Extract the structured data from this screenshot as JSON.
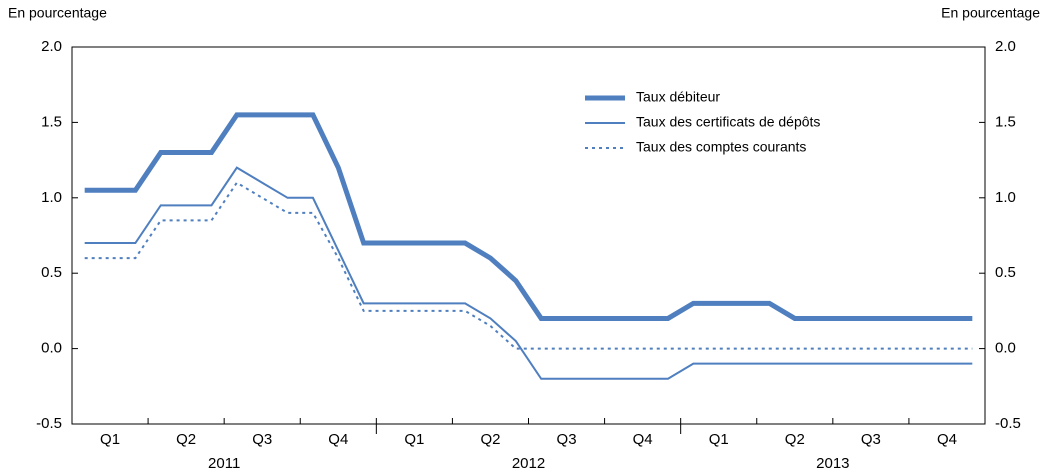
{
  "chart_data": {
    "type": "line",
    "y_label": "En pourcentage",
    "y2_label": "En pourcentage",
    "quarters": [
      "Q1",
      "Q2",
      "Q3",
      "Q4",
      "Q1",
      "Q2",
      "Q3",
      "Q4",
      "Q1",
      "Q2",
      "Q3",
      "Q4"
    ],
    "years": [
      "2011",
      "2012",
      "2013"
    ],
    "series": [
      {
        "name": "Taux débiteur",
        "color": "#4f7fbf",
        "style": "thick",
        "values": [
          1.05,
          1.05,
          1.05,
          1.3,
          1.3,
          1.3,
          1.55,
          1.55,
          1.55,
          1.55,
          1.2,
          0.7,
          0.7,
          0.7,
          0.7,
          0.7,
          0.6,
          0.45,
          0.2,
          0.2,
          0.2,
          0.2,
          0.2,
          0.2,
          0.3,
          0.3,
          0.3,
          0.3,
          0.2,
          0.2,
          0.2,
          0.2,
          0.2,
          0.2,
          0.2,
          0.2
        ]
      },
      {
        "name": "Taux des certificats de dépôts",
        "color": "#4f7fbf",
        "style": "thin",
        "values": [
          0.7,
          0.7,
          0.7,
          0.95,
          0.95,
          0.95,
          1.2,
          1.1,
          1.0,
          1.0,
          0.65,
          0.3,
          0.3,
          0.3,
          0.3,
          0.3,
          0.2,
          0.05,
          -0.2,
          -0.2,
          -0.2,
          -0.2,
          -0.2,
          -0.2,
          -0.1,
          -0.1,
          -0.1,
          -0.1,
          -0.1,
          -0.1,
          -0.1,
          -0.1,
          -0.1,
          -0.1,
          -0.1,
          -0.1
        ]
      },
      {
        "name": "Taux des comptes courants",
        "color": "#4f7fbf",
        "style": "dotted",
        "values": [
          0.6,
          0.6,
          0.6,
          0.85,
          0.85,
          0.85,
          1.1,
          1.0,
          0.9,
          0.9,
          0.6,
          0.25,
          0.25,
          0.25,
          0.25,
          0.25,
          0.15,
          0.0,
          0.0,
          0.0,
          0.0,
          0.0,
          0.0,
          0.0,
          0.0,
          0.0,
          0.0,
          0.0,
          0.0,
          0.0,
          0.0,
          0.0,
          0.0,
          0.0,
          0.0,
          0.0
        ]
      }
    ],
    "ylim": [
      -0.5,
      2.0
    ],
    "yticks": [
      -0.5,
      0.5,
      {
        "value": 0,
        "label": "0.0"
      },
      {
        "value": 1,
        "label": "1.0"
      },
      1.5,
      {
        "value": 2,
        "label": "2.0"
      }
    ],
    "y2lim": [
      -0.5,
      2.0
    ],
    "y2ticks": [
      -0.5,
      0.5,
      {
        "value": 0,
        "label": "0.0"
      },
      {
        "value": 1,
        "label": "1.0"
      },
      1.5,
      {
        "value": 2,
        "label": "2.0"
      }
    ],
    "legend": "top-right"
  }
}
